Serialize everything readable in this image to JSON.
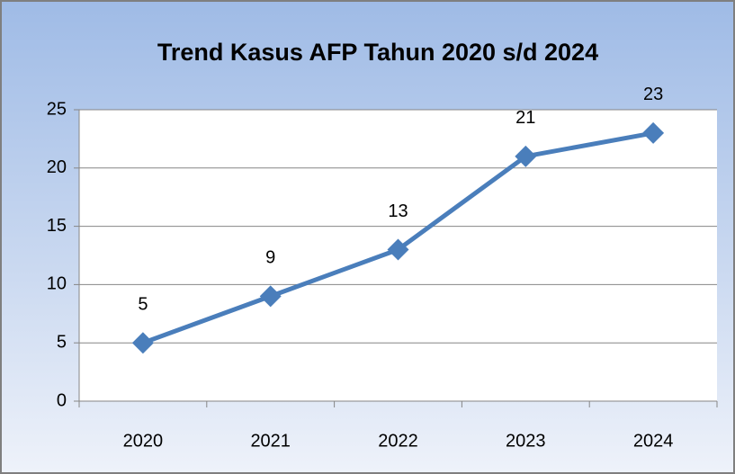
{
  "chart_data": {
    "type": "line",
    "title": "Trend Kasus AFP Tahun 2020 s/d 2024",
    "categories": [
      "2020",
      "2021",
      "2022",
      "2023",
      "2024"
    ],
    "values": [
      5,
      9,
      13,
      21,
      23
    ],
    "color": "#4a7ebb",
    "ylim": [
      0,
      25
    ],
    "yticks": [
      0,
      5,
      10,
      15,
      20,
      25
    ],
    "grid": true
  }
}
